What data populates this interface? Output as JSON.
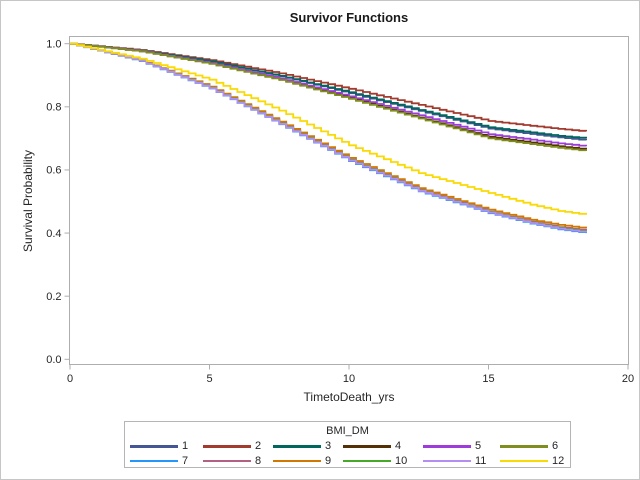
{
  "chart_data": {
    "type": "line",
    "curve_style": "step",
    "title": "Survivor Functions",
    "xlabel": "TimetoDeath_yrs",
    "ylabel": "Survival Probability",
    "xlim": [
      0,
      20
    ],
    "ylim": [
      0.0,
      1.0
    ],
    "grid": false,
    "axis_color": "#aeaeae",
    "text_color": "#262626",
    "x_ticks": [
      {
        "v": 0,
        "label": "0"
      },
      {
        "v": 5,
        "label": "5"
      },
      {
        "v": 10,
        "label": "10"
      },
      {
        "v": 15,
        "label": "15"
      },
      {
        "v": 20,
        "label": "20"
      }
    ],
    "y_ticks": [
      {
        "v": 0.0,
        "label": "0.0"
      },
      {
        "v": 0.2,
        "label": "0.2"
      },
      {
        "v": 0.4,
        "label": "0.4"
      },
      {
        "v": 0.6,
        "label": "0.6"
      },
      {
        "v": 0.8,
        "label": "0.8"
      },
      {
        "v": 1.0,
        "label": "1.0"
      }
    ],
    "legend": {
      "title": "BMI_DM",
      "position": "bottom",
      "rows": 2
    },
    "sample_x": [
      0,
      2.5,
      5,
      7.5,
      10,
      12.5,
      15,
      16.5,
      17.5,
      18.5
    ],
    "series": [
      {
        "name": "1",
        "color": "#445694",
        "values": [
          1.0,
          0.978,
          0.943,
          0.897,
          0.843,
          0.787,
          0.731,
          0.714,
          0.703,
          0.694
        ]
      },
      {
        "name": "2",
        "color": "#A23A2E",
        "values": [
          1.0,
          0.98,
          0.948,
          0.906,
          0.857,
          0.806,
          0.755,
          0.74,
          0.73,
          0.722
        ]
      },
      {
        "name": "3",
        "color": "#01665E",
        "values": [
          1.0,
          0.978,
          0.944,
          0.898,
          0.846,
          0.79,
          0.735,
          0.719,
          0.708,
          0.7
        ]
      },
      {
        "name": "4",
        "color": "#543005",
        "values": [
          1.0,
          0.976,
          0.937,
          0.887,
          0.828,
          0.766,
          0.705,
          0.687,
          0.675,
          0.665
        ]
      },
      {
        "name": "5",
        "color": "#9D3CDB",
        "values": [
          1.0,
          0.977,
          0.939,
          0.89,
          0.833,
          0.773,
          0.713,
          0.696,
          0.684,
          0.675
        ]
      },
      {
        "name": "6",
        "color": "#7F8E1F",
        "values": [
          1.0,
          0.976,
          0.936,
          0.885,
          0.825,
          0.763,
          0.7,
          0.682,
          0.67,
          0.66
        ]
      },
      {
        "name": "7",
        "color": "#2597FA",
        "values": [
          1.0,
          0.945,
          0.858,
          0.745,
          0.628,
          0.532,
          0.463,
          0.43,
          0.412,
          0.4
        ]
      },
      {
        "name": "8",
        "color": "#B26084",
        "values": [
          1.0,
          0.947,
          0.861,
          0.749,
          0.633,
          0.537,
          0.468,
          0.436,
          0.419,
          0.408
        ]
      },
      {
        "name": "9",
        "color": "#D17800",
        "values": [
          1.0,
          0.948,
          0.864,
          0.753,
          0.638,
          0.542,
          0.474,
          0.442,
          0.426,
          0.415
        ]
      },
      {
        "name": "10",
        "color": "#47A82A",
        "values": [
          1.0,
          0.946,
          0.86,
          0.747,
          0.631,
          0.535,
          0.466,
          0.433,
          0.416,
          0.404
        ]
      },
      {
        "name": "11",
        "color": "#B38EF3",
        "values": [
          1.0,
          0.946,
          0.859,
          0.746,
          0.63,
          0.534,
          0.465,
          0.432,
          0.414,
          0.402
        ]
      },
      {
        "name": "12",
        "color": "#F9DA04",
        "values": [
          1.0,
          0.952,
          0.886,
          0.788,
          0.678,
          0.59,
          0.527,
          0.49,
          0.47,
          0.458
        ]
      }
    ]
  }
}
